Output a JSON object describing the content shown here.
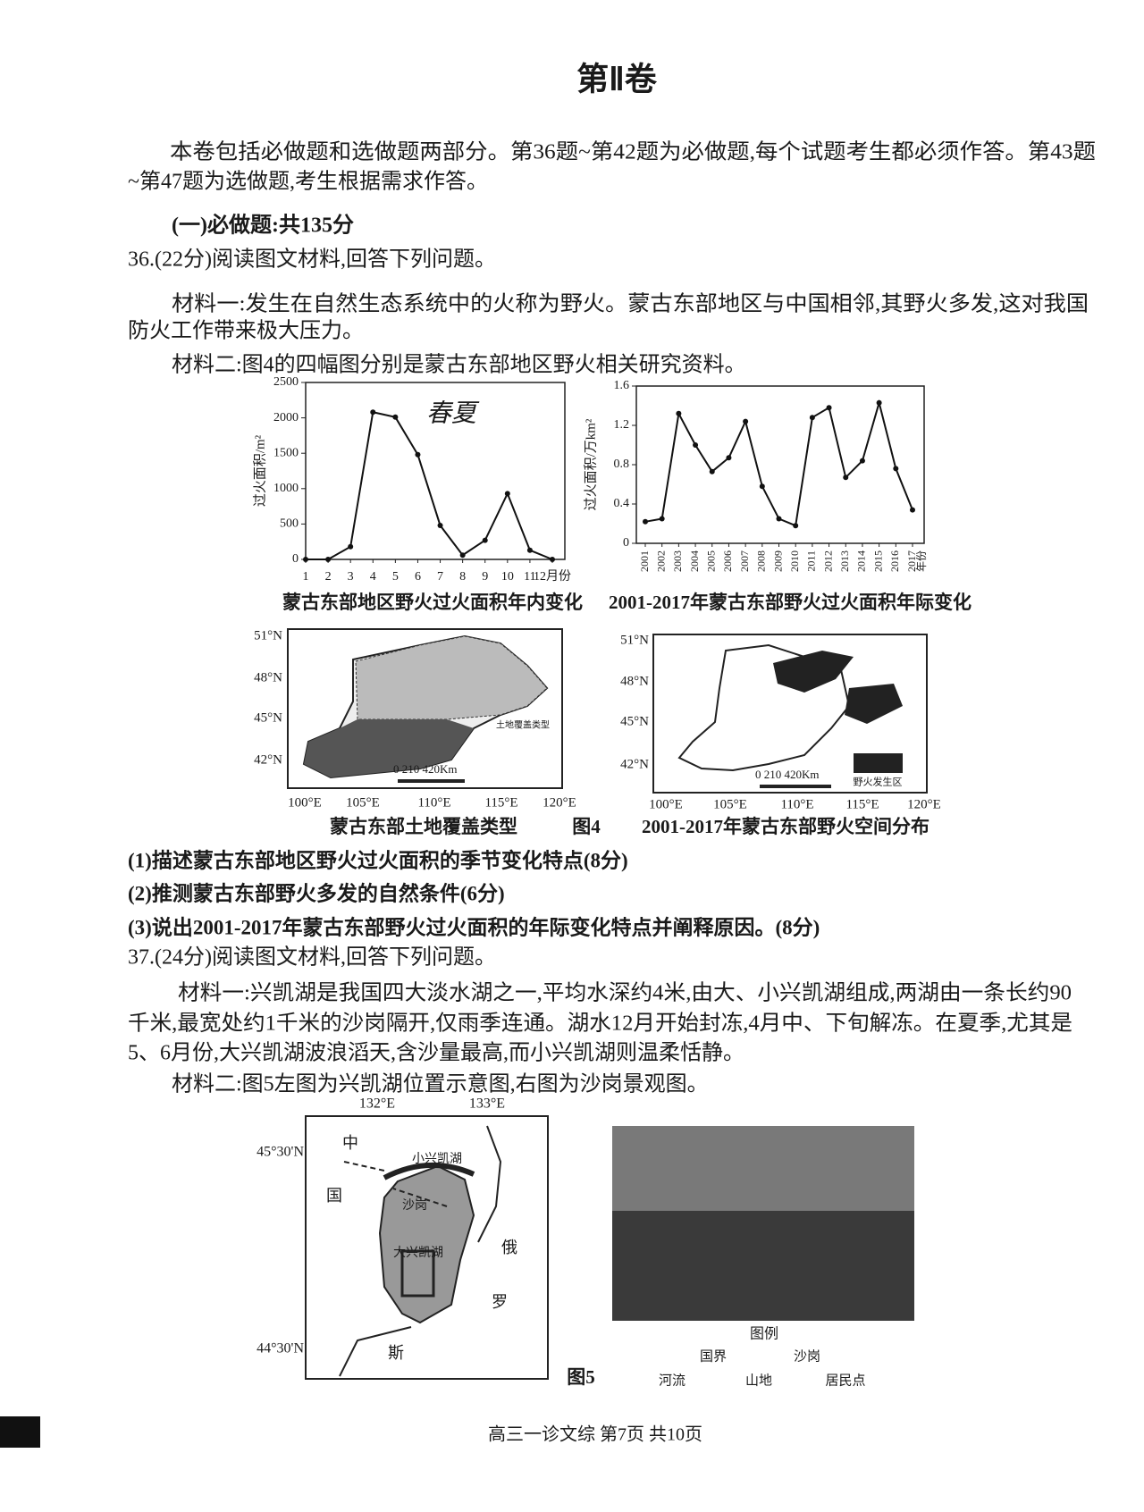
{
  "header": {
    "title": "第Ⅱ卷"
  },
  "intro": [
    "本卷包括必做题和选做题两部分。第36题~第42题为必做题,每个试题考生都必须作答。第43题",
    "~第47题为选做题,考生根据需求作答。"
  ],
  "section": "(一)必做题:共135分",
  "q36": {
    "stem": "36.(22分)阅读图文材料,回答下列问题。",
    "material1": [
      "材料一:发生在自然生态系统中的火称为野火。蒙古东部地区与中国相邻,其野火多发,这对我国",
      "防火工作带来极大压力。"
    ],
    "material2": "材料二:图4的四幅图分别是蒙古东部地区野火相关研究资料。",
    "questions": [
      "(1)描述蒙古东部地区野火过火面积的季节变化特点(8分)",
      "(2)推测蒙古东部野火多发的自然条件(6分)",
      "(3)说出2001-2017年蒙古东部野火过火面积的年际变化特点并阐释原因。(8分)"
    ]
  },
  "figure4": {
    "label": "图4",
    "charts": [
      {
        "type": "line",
        "title": "蒙古东部地区野火过火面积年内变化",
        "y_label": "过火面积/m²",
        "annotation": "春夏",
        "categories": [
          "1",
          "2",
          "3",
          "4",
          "5",
          "6",
          "7",
          "8",
          "9",
          "10",
          "11",
          "12月份"
        ],
        "values": [
          0,
          0,
          180,
          2080,
          2010,
          1480,
          480,
          60,
          270,
          930,
          130,
          0
        ],
        "ylim": [
          0,
          2500
        ],
        "yticks": [
          0,
          500,
          1000,
          1500,
          2000,
          2500
        ]
      },
      {
        "type": "line",
        "title": "2001-2017年蒙古东部野火过火面积年际变化",
        "y_label": "过火面积/万km²",
        "x_label": "年份",
        "categories": [
          "2001",
          "2002",
          "2003",
          "2004",
          "2005",
          "2006",
          "2007",
          "2008",
          "2009",
          "2010",
          "2011",
          "2012",
          "2013",
          "2014",
          "2015",
          "2016",
          "2017"
        ],
        "values": [
          0.22,
          0.25,
          1.32,
          1.0,
          0.73,
          0.87,
          1.24,
          0.58,
          0.25,
          0.18,
          1.28,
          1.38,
          0.67,
          0.84,
          1.43,
          0.76,
          0.34
        ],
        "ylim": [
          0,
          1.6
        ],
        "yticks": [
          0,
          0.4,
          0.8,
          1.2,
          1.6
        ]
      }
    ],
    "maps": [
      {
        "caption": "蒙古东部土地覆盖类型",
        "lat_labels": [
          "51°N",
          "48°N",
          "45°N",
          "42°N"
        ],
        "lon_labels": [
          "100°E",
          "105°E",
          "110°E",
          "115°E",
          "120°E"
        ],
        "scale": "0 210 420Km",
        "legend_title": "土地覆盖类型"
      },
      {
        "caption": "2001-2017年蒙古东部野火空间分布",
        "lat_labels": [
          "51°N",
          "48°N",
          "45°N",
          "42°N"
        ],
        "lon_labels": [
          "100°E",
          "105°E",
          "110°E",
          "115°E",
          "120°E"
        ],
        "scale": "0 210 420Km",
        "legend": "野火发生区"
      }
    ]
  },
  "q37": {
    "stem": "37.(24分)阅读图文材料,回答下列问题。",
    "material1": [
      "材料一:兴凯湖是我国四大淡水湖之一,平均水深约4米,由大、小兴凯湖组成,两湖由一条长约90",
      "千米,最宽处约1千米的沙岗隔开,仅雨季连通。湖水12月开始封冻,4月中、下旬解冻。在夏季,尤其是",
      "5、6月份,大兴凯湖波浪滔天,含沙量最高,而小兴凯湖则温柔恬静。"
    ],
    "material2": "材料二:图5左图为兴凯湖位置示意图,右图为沙岗景观图。"
  },
  "figure5": {
    "label": "图5",
    "lon_labels": [
      "132°E",
      "133°E"
    ],
    "lat_labels": [
      "45°30'N",
      "44°30'N"
    ],
    "places": [
      "中",
      "国",
      "俄",
      "罗",
      "斯",
      "小兴凯湖",
      "沙岗",
      "大兴凯湖"
    ],
    "legend_title": "图例",
    "legend": [
      "国界",
      "沙岗",
      "河流",
      "山地",
      "居民点"
    ]
  },
  "footer": "高三一诊文综 第7页 共10页"
}
